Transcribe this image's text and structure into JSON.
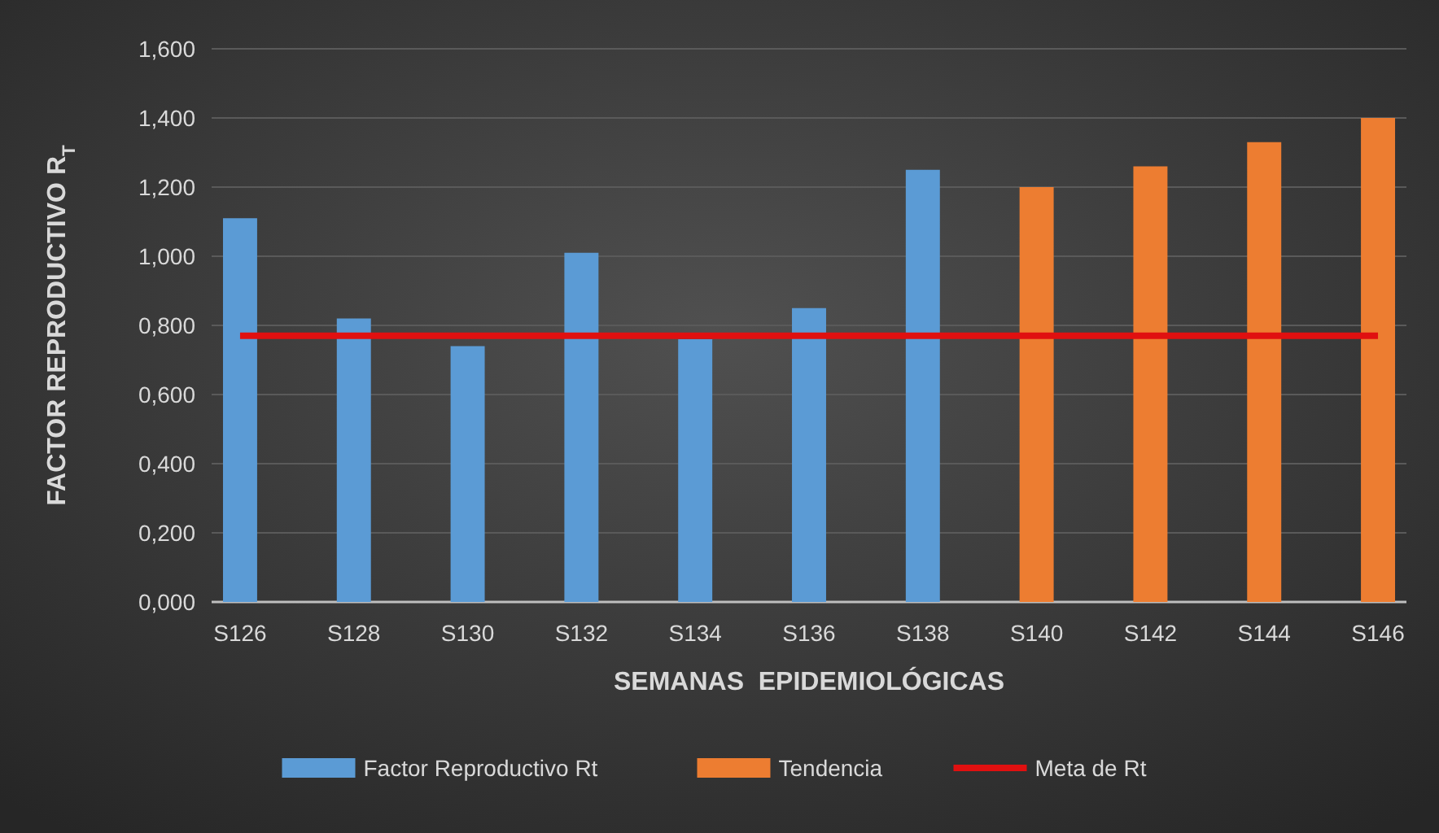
{
  "chart_data": {
    "type": "bar",
    "ylabel": "FACTOR REPRODUCTIVO R$_{T}$",
    "xlabel": "SEMANAS  EPIDEMIOLÓGICAS",
    "categories": [
      "S126",
      "S128",
      "S130",
      "S132",
      "S134",
      "S136",
      "S138",
      "S140",
      "S142",
      "S144",
      "S146"
    ],
    "series": [
      {
        "name": "Factor Reproductivo Rt",
        "color": "#5b9bd5",
        "values": [
          1.11,
          0.82,
          0.74,
          1.01,
          0.76,
          0.85,
          1.25,
          null,
          null,
          null,
          null
        ]
      },
      {
        "name": "Tendencia",
        "color": "#ed7d31",
        "values": [
          null,
          null,
          null,
          null,
          null,
          null,
          null,
          1.2,
          1.26,
          1.33,
          1.4
        ]
      },
      {
        "name": "Meta de Rt",
        "type": "line",
        "color": "#e01010",
        "values": [
          0.77,
          0.77,
          0.77,
          0.77,
          0.77,
          0.77,
          0.77,
          0.77,
          0.77,
          0.77,
          0.77
        ]
      }
    ],
    "ylim": [
      0,
      1.6
    ],
    "yticks": [
      {
        "value": 0,
        "label": "0,000"
      },
      {
        "value": 0.2,
        "label": "0,200"
      },
      {
        "value": 0.4,
        "label": "0,400"
      },
      {
        "value": 0.6,
        "label": "0,600"
      },
      {
        "value": 0.8,
        "label": "0,800"
      },
      {
        "value": 1,
        "label": "1,000"
      },
      {
        "value": 1.2,
        "label": "1,200"
      },
      {
        "value": 1.4,
        "label": "1,400"
      },
      {
        "value": 1.6,
        "label": "1,600"
      }
    ],
    "grid": "y",
    "legend": "bottom"
  }
}
